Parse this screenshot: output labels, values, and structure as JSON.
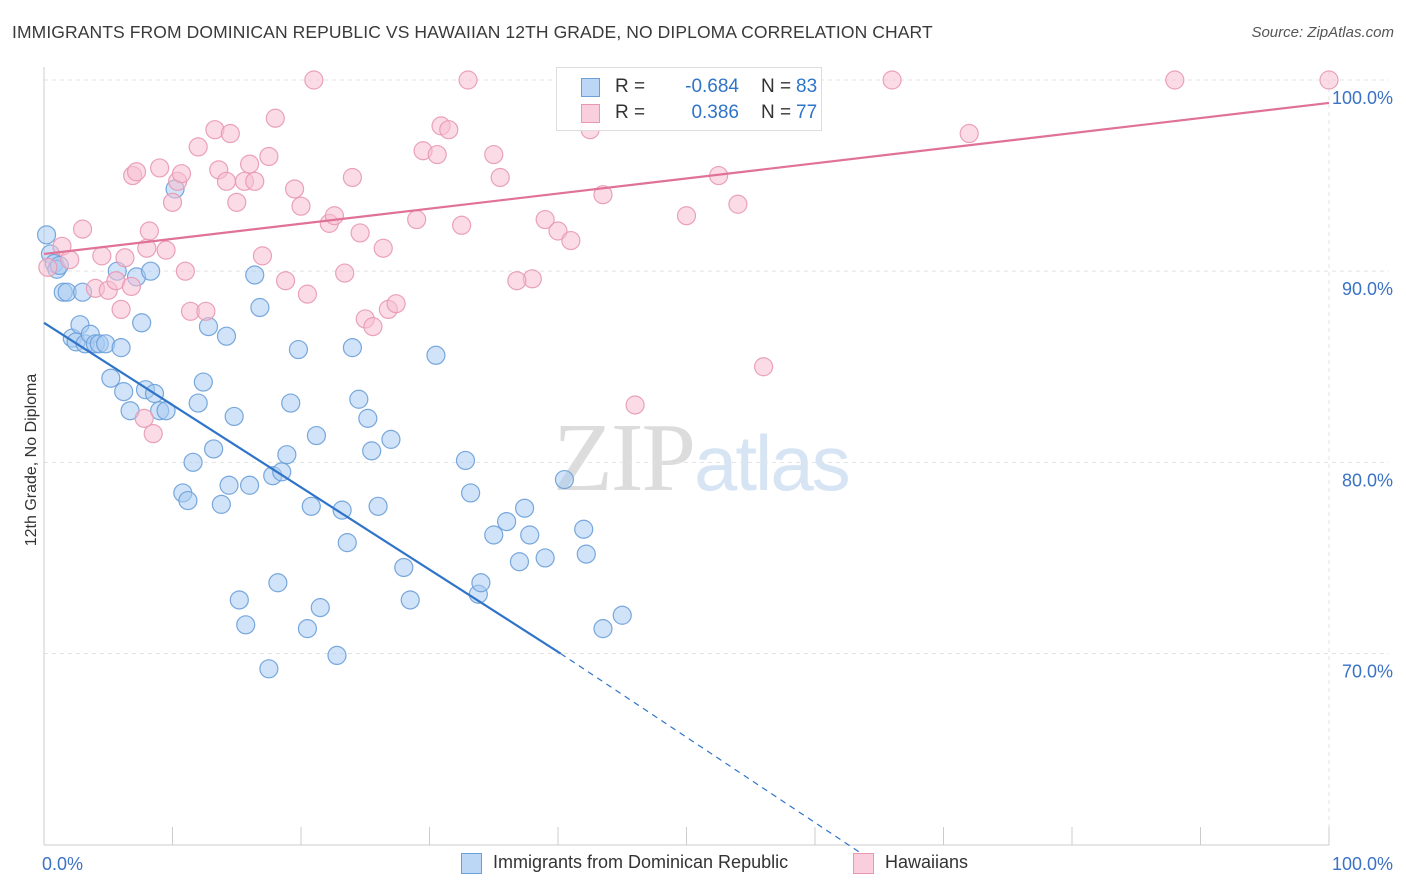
{
  "title": "IMMIGRANTS FROM DOMINICAN REPUBLIC VS HAWAIIAN 12TH GRADE, NO DIPLOMA CORRELATION CHART",
  "source": "Source: ZipAtlas.com",
  "watermark": {
    "zip": "ZIP",
    "atlas": "atlas"
  },
  "legend": {
    "r_label": "R =",
    "n_label": "N =",
    "series": [
      {
        "r": "-0.684",
        "n": "83"
      },
      {
        "r": "0.386",
        "n": "77"
      }
    ]
  },
  "colors": {
    "blue_fill": "#aaccf2",
    "blue_stroke": "#6a9fd8",
    "blue_line": "#2f74c8",
    "pink_fill": "#f7bfd2",
    "pink_stroke": "#e898b3",
    "pink_line": "#e07199",
    "grid": "#e3e3e3",
    "tick_text": "#3a72c4"
  },
  "chart_data": {
    "type": "scatter",
    "title": "IMMIGRANTS FROM DOMINICAN REPUBLIC VS HAWAIIAN 12TH GRADE, NO DIPLOMA CORRELATION CHART",
    "xlabel": "",
    "ylabel": "12th Grade, No Diploma",
    "xlim": [
      0,
      100
    ],
    "ylim": [
      59.5,
      101
    ],
    "x_tick_labels": [
      "0.0%",
      "100.0%"
    ],
    "y_ticks": [
      70,
      80,
      90,
      100
    ],
    "y_tick_labels": [
      "70.0%",
      "80.0%",
      "90.0%",
      "100.0%"
    ],
    "grid": true,
    "legend_position": "top-center",
    "series": [
      {
        "name": "Immigrants from Dominican Republic",
        "color": "#aaccf2",
        "points": [
          [
            0.2,
            91.9
          ],
          [
            0.5,
            90.9
          ],
          [
            0.8,
            90.4
          ],
          [
            1.0,
            90.1
          ],
          [
            1.5,
            88.9
          ],
          [
            1.8,
            88.9
          ],
          [
            2.2,
            86.5
          ],
          [
            2.5,
            86.3
          ],
          [
            2.8,
            87.2
          ],
          [
            3.2,
            86.2
          ],
          [
            3.6,
            86.7
          ],
          [
            4.0,
            86.2
          ],
          [
            4.3,
            86.2
          ],
          [
            4.8,
            86.2
          ],
          [
            5.2,
            84.4
          ],
          [
            5.7,
            90.0
          ],
          [
            6.2,
            83.7
          ],
          [
            6.7,
            82.7
          ],
          [
            7.2,
            89.7
          ],
          [
            7.6,
            87.3
          ],
          [
            7.9,
            83.8
          ],
          [
            8.3,
            90.0
          ],
          [
            8.6,
            83.6
          ],
          [
            9.0,
            82.7
          ],
          [
            9.5,
            82.7
          ],
          [
            10.2,
            94.3
          ],
          [
            10.8,
            78.4
          ],
          [
            11.2,
            78.0
          ],
          [
            11.6,
            80.0
          ],
          [
            12.0,
            83.1
          ],
          [
            12.4,
            84.2
          ],
          [
            12.8,
            87.1
          ],
          [
            13.2,
            80.7
          ],
          [
            13.8,
            77.8
          ],
          [
            14.2,
            86.6
          ],
          [
            14.4,
            78.8
          ],
          [
            14.8,
            82.4
          ],
          [
            15.2,
            72.8
          ],
          [
            15.7,
            71.5
          ],
          [
            16.0,
            78.8
          ],
          [
            16.4,
            89.8
          ],
          [
            16.8,
            88.1
          ],
          [
            17.5,
            69.2
          ],
          [
            17.8,
            79.3
          ],
          [
            18.2,
            73.7
          ],
          [
            18.5,
            79.5
          ],
          [
            18.9,
            80.4
          ],
          [
            19.2,
            83.1
          ],
          [
            19.8,
            85.9
          ],
          [
            20.5,
            71.3
          ],
          [
            20.8,
            77.7
          ],
          [
            21.2,
            81.4
          ],
          [
            21.5,
            72.4
          ],
          [
            22.8,
            69.9
          ],
          [
            23.2,
            77.5
          ],
          [
            23.6,
            75.8
          ],
          [
            24.0,
            86.0
          ],
          [
            24.5,
            83.3
          ],
          [
            25.2,
            82.3
          ],
          [
            25.5,
            80.6
          ],
          [
            26.0,
            77.7
          ],
          [
            27.0,
            81.2
          ],
          [
            28.0,
            74.5
          ],
          [
            28.5,
            72.8
          ],
          [
            30.5,
            85.6
          ],
          [
            32.8,
            80.1
          ],
          [
            33.2,
            78.4
          ],
          [
            33.8,
            73.1
          ],
          [
            34.0,
            73.7
          ],
          [
            35.0,
            76.2
          ],
          [
            36.0,
            76.9
          ],
          [
            37.0,
            74.8
          ],
          [
            37.4,
            77.6
          ],
          [
            37.8,
            76.2
          ],
          [
            39.0,
            75.0
          ],
          [
            40.5,
            79.1
          ],
          [
            42.0,
            76.5
          ],
          [
            42.2,
            75.2
          ],
          [
            43.5,
            71.3
          ],
          [
            45.0,
            72.0
          ],
          [
            3.0,
            88.9
          ],
          [
            6.0,
            86.0
          ],
          [
            1.2,
            90.3
          ]
        ]
      },
      {
        "name": "Hawaiians",
        "color": "#f7bfd2",
        "points": [
          [
            0.3,
            90.2
          ],
          [
            1.4,
            91.3
          ],
          [
            2.0,
            90.6
          ],
          [
            3.0,
            92.2
          ],
          [
            4.0,
            89.1
          ],
          [
            4.5,
            90.8
          ],
          [
            5.0,
            89.0
          ],
          [
            5.6,
            89.5
          ],
          [
            6.0,
            88.0
          ],
          [
            6.3,
            90.7
          ],
          [
            6.8,
            89.2
          ],
          [
            6.9,
            95.0
          ],
          [
            7.2,
            95.2
          ],
          [
            7.8,
            82.3
          ],
          [
            8.0,
            91.2
          ],
          [
            8.2,
            92.1
          ],
          [
            8.5,
            81.5
          ],
          [
            9.0,
            95.4
          ],
          [
            9.5,
            91.1
          ],
          [
            10.0,
            93.6
          ],
          [
            10.4,
            94.7
          ],
          [
            10.7,
            95.1
          ],
          [
            11.0,
            90.0
          ],
          [
            11.4,
            87.9
          ],
          [
            12.0,
            96.5
          ],
          [
            13.3,
            97.4
          ],
          [
            13.6,
            95.3
          ],
          [
            14.2,
            94.7
          ],
          [
            14.5,
            97.2
          ],
          [
            15.0,
            93.6
          ],
          [
            15.6,
            94.7
          ],
          [
            16.0,
            95.6
          ],
          [
            16.4,
            94.7
          ],
          [
            17.0,
            90.8
          ],
          [
            17.5,
            96.0
          ],
          [
            18.0,
            98.0
          ],
          [
            18.8,
            89.5
          ],
          [
            19.5,
            94.3
          ],
          [
            20.0,
            93.4
          ],
          [
            20.5,
            88.8
          ],
          [
            21.0,
            100.0
          ],
          [
            22.2,
            92.5
          ],
          [
            22.6,
            92.9
          ],
          [
            23.4,
            89.9
          ],
          [
            24.0,
            94.9
          ],
          [
            24.6,
            92.0
          ],
          [
            25.0,
            87.5
          ],
          [
            25.6,
            87.1
          ],
          [
            26.4,
            91.2
          ],
          [
            26.8,
            88.0
          ],
          [
            27.4,
            88.3
          ],
          [
            29.0,
            92.7
          ],
          [
            29.5,
            96.3
          ],
          [
            30.6,
            96.1
          ],
          [
            30.9,
            97.6
          ],
          [
            31.5,
            97.4
          ],
          [
            32.5,
            92.4
          ],
          [
            33.0,
            100.0
          ],
          [
            35.0,
            96.1
          ],
          [
            35.5,
            94.9
          ],
          [
            38.0,
            89.6
          ],
          [
            39.0,
            92.7
          ],
          [
            40.0,
            92.1
          ],
          [
            41.0,
            91.6
          ],
          [
            42.5,
            97.4
          ],
          [
            43.5,
            94.0
          ],
          [
            46.0,
            83.0
          ],
          [
            50.0,
            92.9
          ],
          [
            52.5,
            95.0
          ],
          [
            54.0,
            93.5
          ],
          [
            56.0,
            85.0
          ],
          [
            66.0,
            100.0
          ],
          [
            72.0,
            97.2
          ],
          [
            88.0,
            100.0
          ],
          [
            100.0,
            100.0
          ],
          [
            12.6,
            87.9
          ],
          [
            36.8,
            89.5
          ]
        ]
      }
    ],
    "trendlines": [
      {
        "series": "Immigrants from Dominican Republic",
        "x": [
          0,
          40.2
        ],
        "y": [
          87.3,
          70.0
        ],
        "dashed_extension_to": [
          63.7,
          59.5
        ]
      },
      {
        "series": "Hawaiians",
        "x": [
          0,
          100
        ],
        "y": [
          90.9,
          98.8
        ]
      }
    ]
  }
}
